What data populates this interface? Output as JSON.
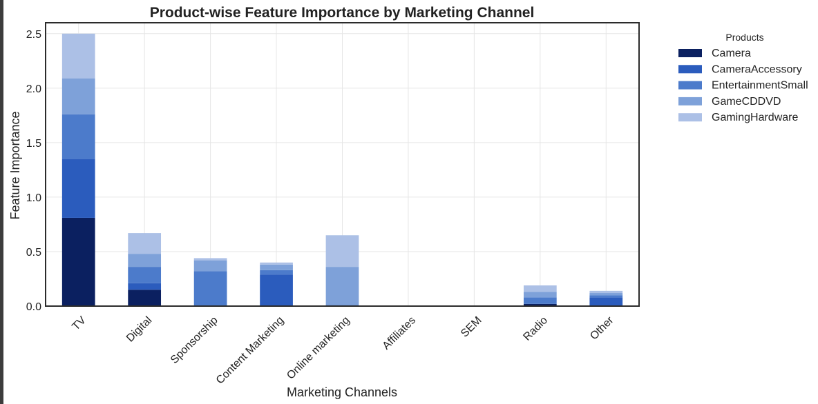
{
  "chart_data": {
    "type": "bar",
    "stacked": true,
    "title": "Product-wise Feature Importance by Marketing Channel",
    "xlabel": "Marketing Channels",
    "ylabel": "Feature Importance",
    "ylim": [
      0,
      2.6
    ],
    "yticks": [
      "0.0",
      "0.5",
      "1.0",
      "1.5",
      "2.0",
      "2.5"
    ],
    "grid": true,
    "legend": {
      "title": "Products",
      "position": "outside-right"
    },
    "categories": [
      "TV",
      "Digital",
      "Sponsorship",
      "Content Marketing",
      "Online marketing",
      "Affiliates",
      "SEM",
      "Radio",
      "Other"
    ],
    "series": [
      {
        "name": "Camera",
        "color": "#0b2060",
        "values": [
          0.81,
          0.15,
          0.0,
          0.0,
          0.0,
          0.0,
          0.0,
          0.02,
          0.0
        ]
      },
      {
        "name": "CameraAccessory",
        "color": "#2b5cbd",
        "values": [
          0.54,
          0.06,
          0.0,
          0.29,
          0.0,
          0.0,
          0.0,
          0.0,
          0.08
        ]
      },
      {
        "name": "EntertainmentSmall",
        "color": "#4c7bcb",
        "values": [
          0.41,
          0.15,
          0.32,
          0.04,
          0.01,
          0.0,
          0.0,
          0.06,
          0.02
        ]
      },
      {
        "name": "GameCDDVD",
        "color": "#7ea1d9",
        "values": [
          0.33,
          0.12,
          0.1,
          0.05,
          0.35,
          0.0,
          0.0,
          0.05,
          0.02
        ]
      },
      {
        "name": "GamingHardware",
        "color": "#acc0e6",
        "values": [
          0.41,
          0.19,
          0.02,
          0.02,
          0.29,
          0.0,
          0.0,
          0.06,
          0.02
        ]
      }
    ]
  }
}
